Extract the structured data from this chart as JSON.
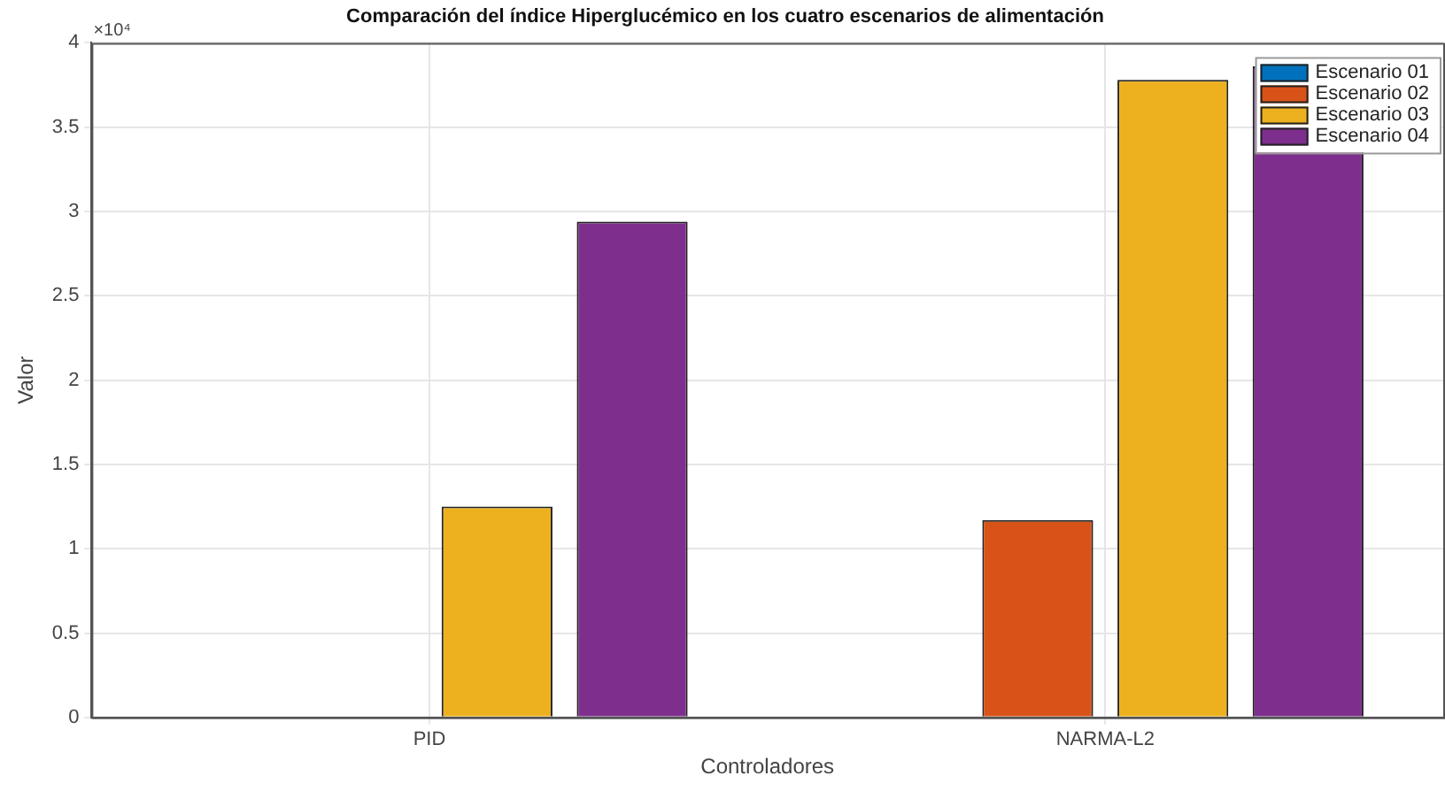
{
  "chart_data": {
    "type": "bar",
    "title": "Comparación del índice Hiperglucémico en los cuatro escenarios de alimentación",
    "xlabel": "Controladores",
    "ylabel": "Valor",
    "annotations": [
      "×10⁴"
    ],
    "categories": [
      "PID",
      "NARMA-L2"
    ],
    "series": [
      {
        "name": "Escenario 01",
        "color": "#0072bd",
        "values": [
          0,
          0
        ]
      },
      {
        "name": "Escenario 02",
        "color": "#d95319",
        "values": [
          0,
          1.17
        ]
      },
      {
        "name": "Escenario 03",
        "color": "#edb120",
        "values": [
          1.25,
          3.78
        ]
      },
      {
        "name": "Escenario 04",
        "color": "#7e2f8e",
        "values": [
          2.94,
          3.86
        ]
      }
    ],
    "ylim": [
      0,
      4
    ],
    "yticks": [
      0,
      0.5,
      1,
      1.5,
      2,
      2.5,
      3,
      3.5,
      4
    ],
    "grid": true,
    "legend": "top right"
  }
}
